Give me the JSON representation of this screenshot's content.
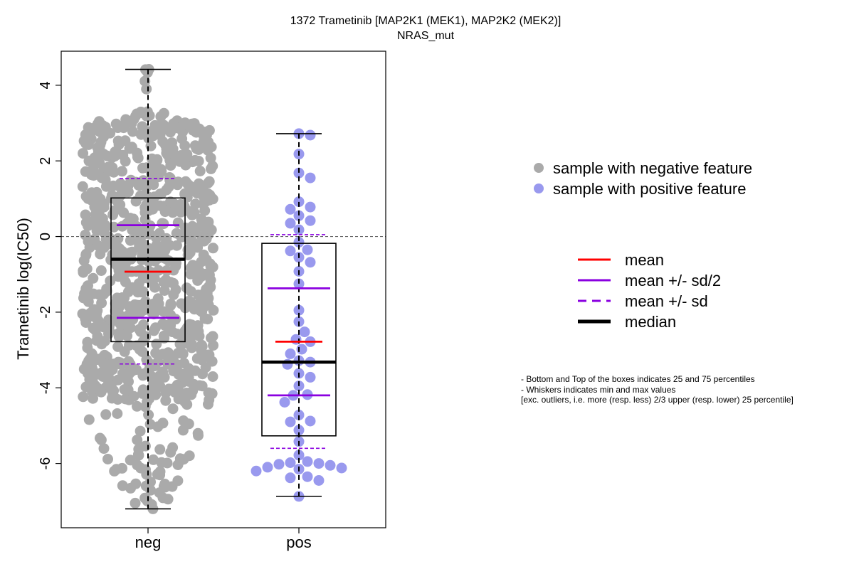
{
  "chart_data": {
    "type": "box",
    "title": "1372 Trametinib [MAP2K1 (MEK1), MAP2K2 (MEK2)]",
    "subtitle": "NRAS_mut",
    "ylabel": "Trametinib log(IC50)",
    "ylim": [
      -7.7,
      4.9
    ],
    "yticks": [
      -6,
      -4,
      -2,
      0,
      2,
      4
    ],
    "reference_line": 0,
    "categories": [
      "neg",
      "pos"
    ],
    "groups": [
      {
        "category": "neg",
        "point_color": "#aaaaaa",
        "min": -7.2,
        "q1": -2.78,
        "median": -0.6,
        "q3": 1.02,
        "max": 4.42,
        "mean": -0.93,
        "mean_minus_half_sd": -2.15,
        "mean_plus_half_sd": 0.3,
        "mean_minus_sd": -3.37,
        "mean_plus_sd": 1.53,
        "n_points": 850
      },
      {
        "category": "pos",
        "point_color": "#9999ee",
        "min": -6.87,
        "q1": -5.27,
        "median": -3.32,
        "q3": -0.18,
        "max": 2.72,
        "mean": -2.78,
        "mean_minus_half_sd": -4.2,
        "mean_plus_half_sd": -1.37,
        "mean_minus_sd": -5.6,
        "mean_plus_sd": 0.05,
        "points": [
          2.72,
          2.68,
          2.18,
          1.68,
          1.55,
          0.92,
          0.78,
          0.72,
          0.55,
          0.42,
          0.35,
          0.18,
          -0.15,
          -0.35,
          -0.38,
          -0.55,
          -0.68,
          -0.92,
          -1.25,
          -1.95,
          -2.25,
          -2.52,
          -2.72,
          -2.78,
          -2.98,
          -3.1,
          -3.28,
          -3.32,
          -3.38,
          -3.62,
          -3.72,
          -3.95,
          -4.18,
          -4.2,
          -4.38,
          -4.72,
          -4.88,
          -4.9,
          -5.12,
          -5.42,
          -5.78,
          -5.95,
          -5.98,
          -6.0,
          -6.02,
          -6.05,
          -6.1,
          -6.12,
          -6.15,
          -6.2,
          -6.35,
          -6.38,
          -6.45,
          -6.87
        ]
      }
    ],
    "legend_points": [
      {
        "label": "sample with negative feature",
        "color": "#aaaaaa"
      },
      {
        "label": "sample with positive feature",
        "color": "#9999ee"
      }
    ],
    "legend_lines": [
      {
        "label": "mean",
        "color": "#ff0000",
        "style": "solid"
      },
      {
        "label": "mean +/- sd/2",
        "color": "#8a00e0",
        "style": "solid"
      },
      {
        "label": "mean +/- sd",
        "color": "#8a00e0",
        "style": "dashed"
      },
      {
        "label": "median",
        "color": "#000000",
        "style": "thick"
      }
    ],
    "notes": [
      "- Bottom and Top of the boxes indicates 25 and 75 percentiles",
      "- Whiskers indicates min and max values",
      "[exc. outliers, i.e. more (resp. less) 2/3 upper (resp. lower) 25 percentile]"
    ]
  }
}
